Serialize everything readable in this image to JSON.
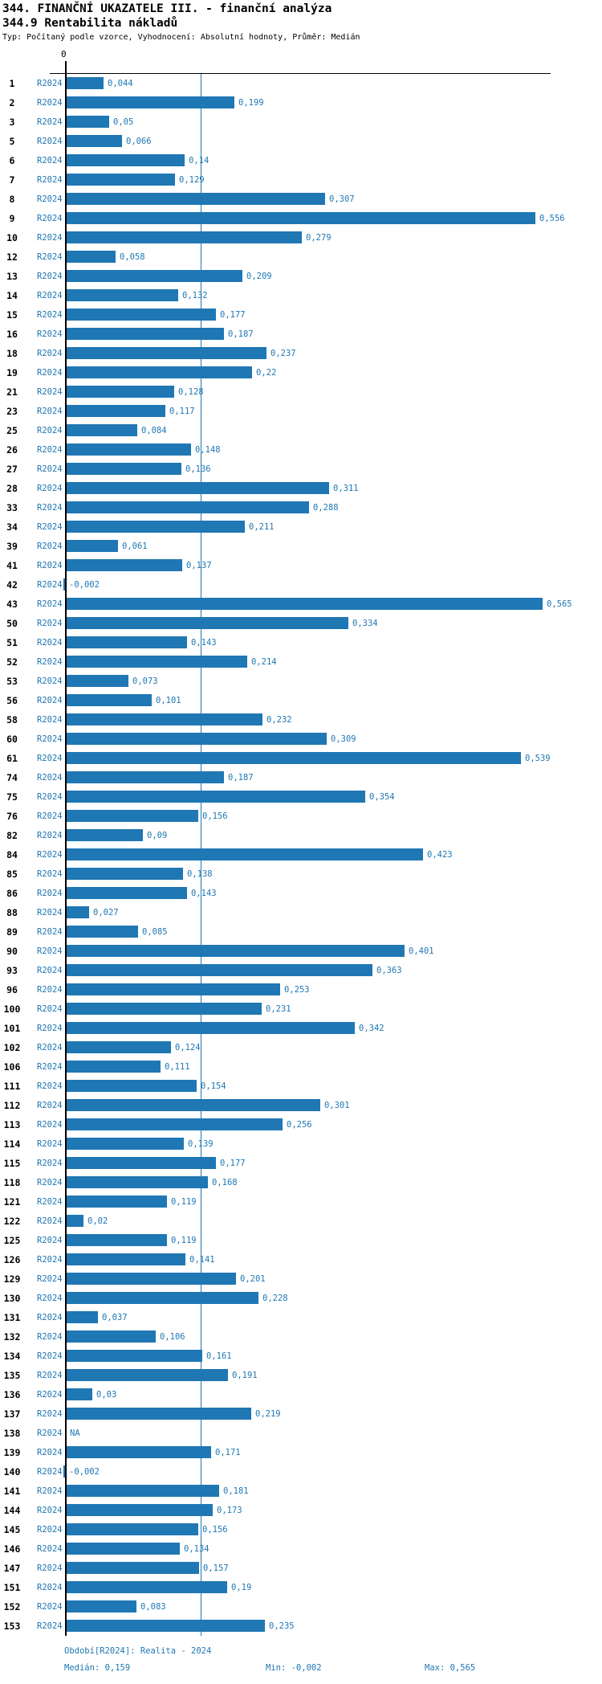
{
  "header": {
    "title": "344. FINANČNÍ UKAZATELE III. - finanční analýza",
    "subtitle": "344.9 Rentabilita nákladů",
    "meta": "Typ: Počítaný podle vzorce, Vyhodnocení: Absolutní hodnoty, Průměr: Medián"
  },
  "chart_data": {
    "type": "bar",
    "orientation": "horizontal",
    "title": "344.9 Rentabilita nákladů",
    "series_label": "R2024",
    "axis_zero_label": "0",
    "xlim": [
      -0.01,
      0.635
    ],
    "median_value": 0.159,
    "min_value": -0.002,
    "max_value": 0.565,
    "bar_color": "#1f77b4",
    "categories": [
      "1",
      "2",
      "3",
      "5",
      "6",
      "7",
      "8",
      "9",
      "10",
      "12",
      "13",
      "14",
      "15",
      "16",
      "18",
      "19",
      "21",
      "23",
      "25",
      "26",
      "27",
      "28",
      "33",
      "34",
      "39",
      "41",
      "42",
      "43",
      "50",
      "51",
      "52",
      "53",
      "56",
      "58",
      "60",
      "61",
      "74",
      "75",
      "76",
      "82",
      "84",
      "85",
      "86",
      "88",
      "89",
      "90",
      "93",
      "96",
      "100",
      "101",
      "102",
      "106",
      "111",
      "112",
      "113",
      "114",
      "115",
      "118",
      "121",
      "122",
      "125",
      "126",
      "129",
      "130",
      "131",
      "132",
      "134",
      "135",
      "136",
      "137",
      "138",
      "139",
      "140",
      "141",
      "144",
      "145",
      "146",
      "147",
      "151",
      "152",
      "153"
    ],
    "values": [
      0.044,
      0.199,
      0.05,
      0.066,
      0.14,
      0.129,
      0.307,
      0.556,
      0.279,
      0.058,
      0.209,
      0.132,
      0.177,
      0.187,
      0.237,
      0.22,
      0.128,
      0.117,
      0.084,
      0.148,
      0.136,
      0.311,
      0.288,
      0.211,
      0.061,
      0.137,
      -0.002,
      0.565,
      0.334,
      0.143,
      0.214,
      0.073,
      0.101,
      0.232,
      0.309,
      0.539,
      0.187,
      0.354,
      0.156,
      0.09,
      0.423,
      0.138,
      0.143,
      0.027,
      0.085,
      0.401,
      0.363,
      0.253,
      0.231,
      0.342,
      0.124,
      0.111,
      0.154,
      0.301,
      0.256,
      0.139,
      0.177,
      0.168,
      0.119,
      0.02,
      0.119,
      0.141,
      0.201,
      0.228,
      0.037,
      0.106,
      0.161,
      0.191,
      0.03,
      0.219,
      null,
      0.171,
      -0.002,
      0.181,
      0.173,
      0.156,
      0.134,
      0.157,
      0.19,
      0.083,
      0.235
    ],
    "value_labels": [
      "0,044",
      "0,199",
      "0,05",
      "0,066",
      "0,14",
      "0,129",
      "0,307",
      "0,556",
      "0,279",
      "0,058",
      "0,209",
      "0,132",
      "0,177",
      "0,187",
      "0,237",
      "0,22",
      "0,128",
      "0,117",
      "0,084",
      "0,148",
      "0,136",
      "0,311",
      "0,288",
      "0,211",
      "0,061",
      "0,137",
      "-0,002",
      "0,565",
      "0,334",
      "0,143",
      "0,214",
      "0,073",
      "0,101",
      "0,232",
      "0,309",
      "0,539",
      "0,187",
      "0,354",
      "0,156",
      "0,09",
      "0,423",
      "0,138",
      "0,143",
      "0,027",
      "0,085",
      "0,401",
      "0,363",
      "0,253",
      "0,231",
      "0,342",
      "0,124",
      "0,111",
      "0,154",
      "0,301",
      "0,256",
      "0,139",
      "0,177",
      "0,168",
      "0,119",
      "0,02",
      "0,119",
      "0,141",
      "0,201",
      "0,228",
      "0,037",
      "0,106",
      "0,161",
      "0,191",
      "0,03",
      "0,219",
      "NA",
      "0,171",
      "-0,002",
      "0,181",
      "0,173",
      "0,156",
      "0,134",
      "0,157",
      "0,19",
      "0,083",
      "0,235"
    ]
  },
  "footer": {
    "period": "Období[R2024]: Realita - 2024",
    "median": "Medián: 0,159",
    "min": "Min: -0,002",
    "max": "Max: 0,565"
  },
  "colors": {
    "bar": "#1f77b4",
    "blue_text": "#1f77b4",
    "axis": "#000000",
    "median_line": "#1f77b4"
  }
}
